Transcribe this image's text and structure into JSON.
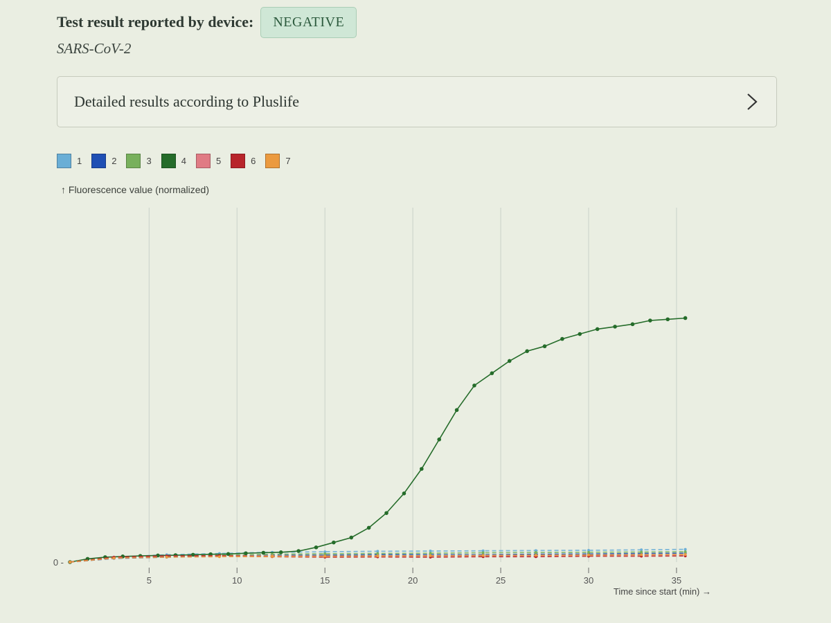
{
  "header": {
    "result_label": "Test result reported by device:",
    "result_value": "NEGATIVE",
    "pathogen": "SARS-CoV-2"
  },
  "details_panel": {
    "label": "Detailed results according to Pluslife",
    "icon": "chevron-right-icon"
  },
  "legend": [
    {
      "label": "1",
      "color": "#6aaed6"
    },
    {
      "label": "2",
      "color": "#1f4fb4"
    },
    {
      "label": "3",
      "color": "#78b05c"
    },
    {
      "label": "4",
      "color": "#256c2a"
    },
    {
      "label": "5",
      "color": "#e07b84"
    },
    {
      "label": "6",
      "color": "#b8252b"
    },
    {
      "label": "7",
      "color": "#eb9a3f"
    }
  ],
  "chart_data": {
    "type": "line",
    "ylabel": "↑ Fluorescence value (normalized)",
    "xlabel": "Time since start (min) →",
    "x_ticks": [
      5,
      10,
      15,
      20,
      25,
      30,
      35
    ],
    "y_ticks": [
      "0"
    ],
    "xlim": [
      0.3,
      36.5
    ],
    "ylim": [
      0,
      1.05
    ],
    "grid": "vertical",
    "series": [
      {
        "name": "1",
        "color": "#6aaed6",
        "x": [
          0.5,
          3,
          6,
          9,
          12,
          15,
          18,
          21,
          24,
          27,
          30,
          33,
          35.5
        ],
        "y": [
          0.0,
          0.02,
          0.03,
          0.035,
          0.04,
          0.042,
          0.044,
          0.045,
          0.046,
          0.047,
          0.048,
          0.05,
          0.052
        ]
      },
      {
        "name": "2",
        "color": "#1f4fb4",
        "x": [
          0.5,
          3,
          6,
          9,
          12,
          15,
          18,
          21,
          24,
          27,
          30,
          33,
          35.5
        ],
        "y": [
          0.0,
          0.015,
          0.02,
          0.025,
          0.028,
          0.028,
          0.03,
          0.03,
          0.03,
          0.032,
          0.033,
          0.035,
          0.036
        ]
      },
      {
        "name": "3",
        "color": "#78b05c",
        "x": [
          0.5,
          3,
          6,
          9,
          12,
          15,
          18,
          21,
          24,
          27,
          30,
          33,
          35.5
        ],
        "y": [
          0.0,
          0.018,
          0.024,
          0.028,
          0.032,
          0.034,
          0.035,
          0.036,
          0.038,
          0.039,
          0.04,
          0.041,
          0.042
        ]
      },
      {
        "name": "4",
        "color": "#256c2a",
        "x": [
          0.5,
          1.5,
          2.5,
          3.5,
          4.5,
          5.5,
          6.5,
          7.5,
          8.5,
          9.5,
          10.5,
          11.5,
          12.5,
          13.5,
          14.5,
          15.5,
          16.5,
          17.5,
          18.5,
          19.5,
          20.5,
          21.5,
          22.5,
          23.5,
          24.5,
          25.5,
          26.5,
          27.5,
          28.5,
          29.5,
          30.5,
          31.5,
          32.5,
          33.5,
          34.5,
          35.5
        ],
        "y": [
          0.0,
          0.013,
          0.02,
          0.023,
          0.025,
          0.027,
          0.028,
          0.03,
          0.032,
          0.033,
          0.036,
          0.038,
          0.04,
          0.045,
          0.06,
          0.08,
          0.1,
          0.14,
          0.2,
          0.28,
          0.38,
          0.5,
          0.62,
          0.72,
          0.77,
          0.82,
          0.86,
          0.88,
          0.91,
          0.93,
          0.95,
          0.96,
          0.97,
          0.985,
          0.99,
          0.995
        ]
      },
      {
        "name": "5",
        "color": "#e07b84",
        "x": [
          0.5,
          3,
          6,
          9,
          12,
          15,
          18,
          21,
          24,
          27,
          30,
          33,
          35.5
        ],
        "y": [
          0.0,
          0.018,
          0.024,
          0.026,
          0.025,
          0.024,
          0.025,
          0.025,
          0.026,
          0.027,
          0.028,
          0.029,
          0.03
        ]
      },
      {
        "name": "6",
        "color": "#b8252b",
        "x": [
          0.5,
          3,
          6,
          9,
          12,
          15,
          18,
          21,
          24,
          27,
          30,
          33,
          35.5
        ],
        "y": [
          0.0,
          0.02,
          0.025,
          0.026,
          0.022,
          0.02,
          0.021,
          0.02,
          0.022,
          0.022,
          0.024,
          0.024,
          0.025
        ]
      },
      {
        "name": "7",
        "color": "#eb9a3f",
        "x": [
          0.5,
          3,
          6,
          9,
          12,
          15,
          18,
          21,
          24,
          27,
          30,
          33,
          35.5
        ],
        "y": [
          0.0,
          0.016,
          0.02,
          0.022,
          0.023,
          0.024,
          0.025,
          0.026,
          0.027,
          0.028,
          0.029,
          0.03,
          0.031
        ]
      }
    ]
  }
}
